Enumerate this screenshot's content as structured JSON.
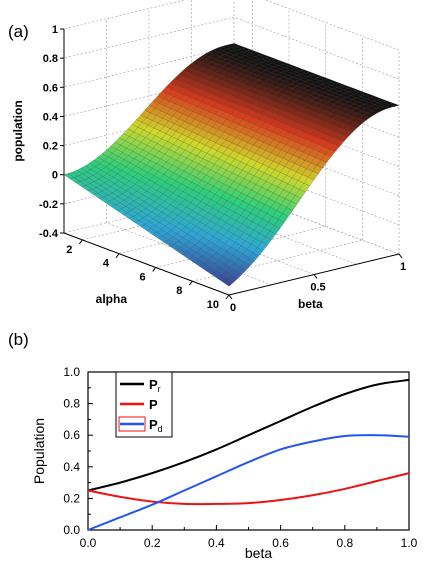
{
  "panels": {
    "a_label": "(a)",
    "b_label": "(b)"
  },
  "chart_data": [
    {
      "type": "surface3d",
      "panel": "(a)",
      "xlabel": "beta",
      "ylabel": "alpha",
      "zlabel": "population",
      "beta_ticks": [
        "0",
        "0.5",
        "1"
      ],
      "alpha_ticks": [
        "2",
        "4",
        "6",
        "8",
        "10"
      ],
      "z_ticks": [
        "-0.4",
        "-0.2",
        "0",
        "0.2",
        "0.4",
        "0.6",
        "0.8",
        "1"
      ],
      "beta_range": [
        0,
        1
      ],
      "alpha_range": [
        1,
        10
      ],
      "z_range": [
        -0.4,
        1
      ],
      "grid": true,
      "colormap": [
        "#3c3c8c",
        "#2fa6d6",
        "#2ecf7a",
        "#cfd82a",
        "#d93a1d",
        "#111111"
      ]
    },
    {
      "type": "line",
      "panel": "(b)",
      "xlabel": "beta",
      "ylabel": "Population",
      "xlim": [
        0,
        1
      ],
      "ylim": [
        0,
        1
      ],
      "x_ticks": [
        "0.0",
        "0.2",
        "0.4",
        "0.6",
        "0.8",
        "1.0"
      ],
      "y_ticks": [
        "0.0",
        "0.2",
        "0.4",
        "0.6",
        "0.8",
        "1.0"
      ],
      "legend_position": "top-left",
      "x": [
        0.0,
        0.1,
        0.2,
        0.3,
        0.4,
        0.5,
        0.6,
        0.7,
        0.8,
        0.9,
        1.0
      ],
      "series": [
        {
          "name": "P",
          "name_sub": "r",
          "color": "#000000",
          "values": [
            0.25,
            0.3,
            0.36,
            0.43,
            0.51,
            0.6,
            0.69,
            0.78,
            0.86,
            0.92,
            0.95
          ]
        },
        {
          "name": "P",
          "name_sub": "",
          "color": "#ee1111",
          "values": [
            0.25,
            0.21,
            0.18,
            0.165,
            0.165,
            0.17,
            0.19,
            0.22,
            0.26,
            0.31,
            0.36
          ]
        },
        {
          "name": "P",
          "name_sub": "d",
          "color": "#2255ee",
          "values": [
            0.0,
            0.08,
            0.16,
            0.25,
            0.34,
            0.43,
            0.51,
            0.56,
            0.595,
            0.6,
            0.59
          ]
        }
      ]
    }
  ]
}
